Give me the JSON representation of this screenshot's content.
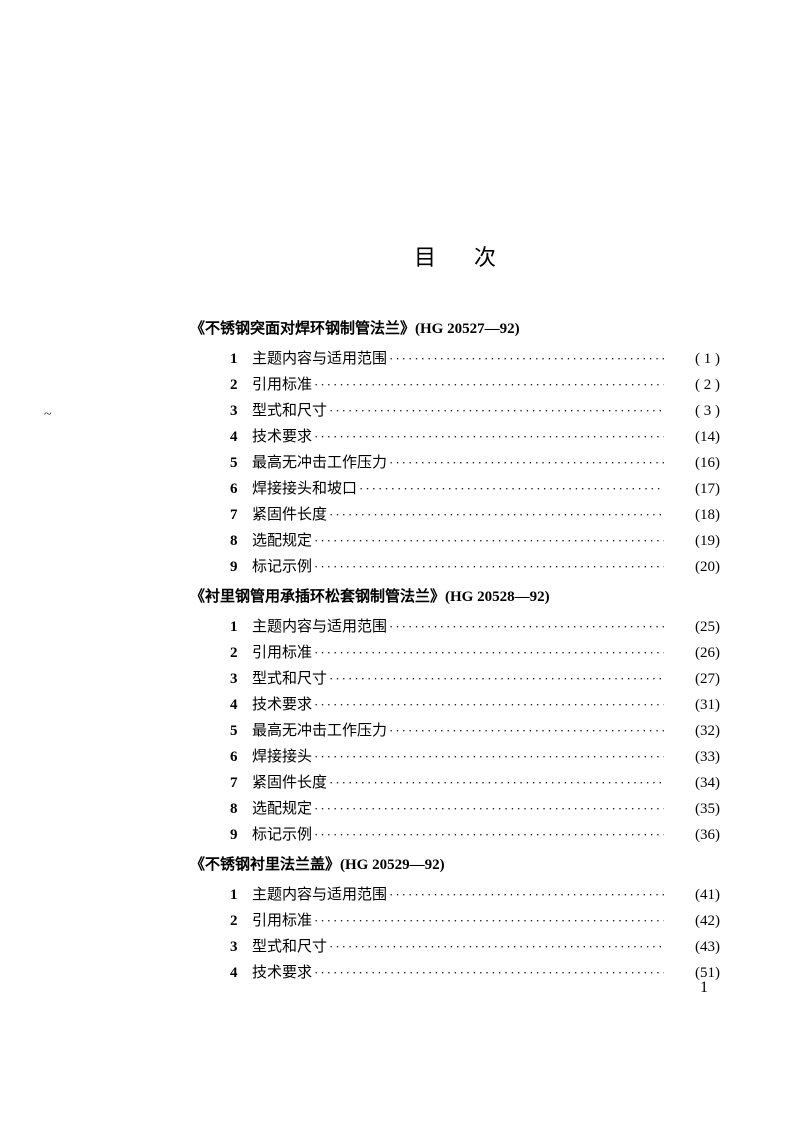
{
  "title": "目次",
  "pageFooter": "1",
  "sections": [
    {
      "header": "《不锈钢突面对焊环钢制管法兰》(HG 20527—92)",
      "entries": [
        {
          "num": "1",
          "title": "主题内容与适用范围",
          "page": "( 1 )"
        },
        {
          "num": "2",
          "title": "引用标准",
          "page": "( 2 )"
        },
        {
          "num": "3",
          "title": "型式和尺寸",
          "page": "( 3 )"
        },
        {
          "num": "4",
          "title": "技术要求",
          "page": "(14)"
        },
        {
          "num": "5",
          "title": "最高无冲击工作压力",
          "page": "(16)"
        },
        {
          "num": "6",
          "title": "焊接接头和坡口",
          "page": "(17)"
        },
        {
          "num": "7",
          "title": "紧固件长度",
          "page": "(18)"
        },
        {
          "num": "8",
          "title": "选配规定",
          "page": "(19)"
        },
        {
          "num": "9",
          "title": "标记示例",
          "page": "(20)"
        }
      ]
    },
    {
      "header": "《衬里钢管用承插环松套钢制管法兰》(HG 20528—92)",
      "entries": [
        {
          "num": "1",
          "title": "主题内容与适用范围",
          "page": "(25)"
        },
        {
          "num": "2",
          "title": "引用标准",
          "page": "(26)"
        },
        {
          "num": "3",
          "title": "型式和尺寸",
          "page": "(27)"
        },
        {
          "num": "4",
          "title": "技术要求",
          "page": "(31)"
        },
        {
          "num": "5",
          "title": "最高无冲击工作压力",
          "page": "(32)"
        },
        {
          "num": "6",
          "title": "焊接接头",
          "page": "(33)"
        },
        {
          "num": "7",
          "title": "紧固件长度",
          "page": "(34)"
        },
        {
          "num": "8",
          "title": "选配规定",
          "page": "(35)"
        },
        {
          "num": "9",
          "title": "标记示例",
          "page": "(36)"
        }
      ]
    },
    {
      "header": "《不锈钢衬里法兰盖》(HG 20529—92)",
      "entries": [
        {
          "num": "1",
          "title": "主题内容与适用范围",
          "page": "(41)"
        },
        {
          "num": "2",
          "title": "引用标准",
          "page": "(42)"
        },
        {
          "num": "3",
          "title": "型式和尺寸",
          "page": "(43)"
        },
        {
          "num": "4",
          "title": "技术要求",
          "page": "(51)"
        }
      ]
    }
  ]
}
